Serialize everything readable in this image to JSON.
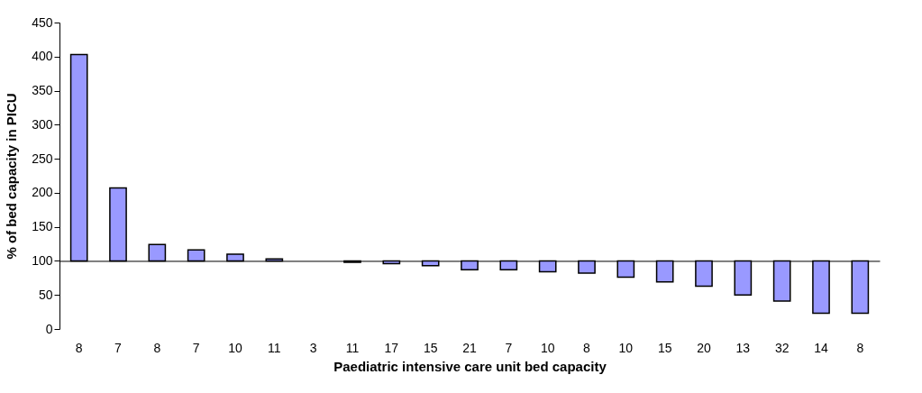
{
  "chart_data": {
    "type": "bar",
    "xlabel": "Paediatric intensive care unit bed capacity",
    "ylabel": "% of bed capacity in PICU",
    "categories": [
      "8",
      "7",
      "8",
      "7",
      "10",
      "11",
      "3",
      "11",
      "17",
      "15",
      "21",
      "7",
      "10",
      "8",
      "10",
      "15",
      "20",
      "13",
      "32",
      "14",
      "8"
    ],
    "base": [
      100,
      100,
      100,
      100,
      100,
      100,
      null,
      100,
      100,
      100,
      100,
      100,
      100,
      100,
      100,
      100,
      100,
      100,
      100,
      100,
      100
    ],
    "values": [
      303,
      107,
      24,
      16,
      10,
      3,
      null,
      -2,
      -4,
      -7,
      -13,
      -13,
      -16,
      -18,
      -24,
      -31,
      -37,
      -50,
      -59,
      -77,
      -77
    ],
    "color": "#9999ff",
    "ylim": [
      0,
      450
    ],
    "yticks": [
      0,
      50,
      100,
      150,
      200,
      250,
      300,
      350,
      400,
      450
    ]
  }
}
